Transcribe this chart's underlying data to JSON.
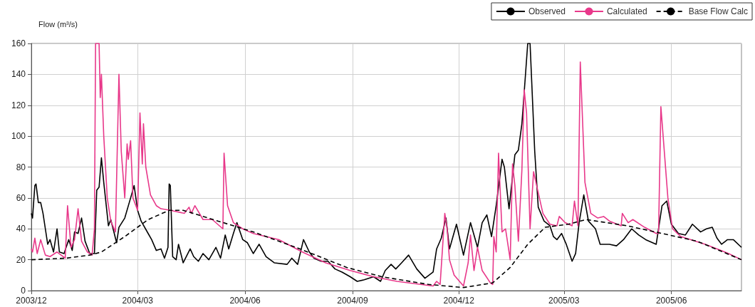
{
  "chart_data": {
    "type": "line",
    "ylabel": "Flow (m³/s)",
    "xlim": [
      "2003-12-01",
      "2005-07-31"
    ],
    "xticks": [
      {
        "value": "2003-12-01",
        "label": "2003/12"
      },
      {
        "value": "2004-03-01",
        "label": "2004/03"
      },
      {
        "value": "2004-06-01",
        "label": "2004/06"
      },
      {
        "value": "2004-09-01",
        "label": "2004/09"
      },
      {
        "value": "2004-12-01",
        "label": "2004/12"
      },
      {
        "value": "2005-03-01",
        "label": "2005/03"
      },
      {
        "value": "2005-06-01",
        "label": "2005/06"
      }
    ],
    "ylim": [
      0,
      160
    ],
    "yticks": [
      0,
      20,
      40,
      60,
      80,
      100,
      120,
      140,
      160
    ],
    "grid": true,
    "legend": "top right",
    "marker": "none",
    "series": [
      {
        "name": "Observed",
        "color": "#000000",
        "line_style": "solid",
        "x": [
          "2003-12-01",
          "2003-12-02",
          "2003-12-04",
          "2003-12-05",
          "2003-12-07",
          "2003-12-09",
          "2003-12-11",
          "2003-12-13",
          "2003-12-15",
          "2003-12-17",
          "2003-12-20",
          "2003-12-23",
          "2003-12-25",
          "2003-12-29",
          "2004-01-02",
          "2004-01-05",
          "2004-01-07",
          "2004-01-10",
          "2004-01-13",
          "2004-01-16",
          "2004-01-20",
          "2004-01-24",
          "2004-01-26",
          "2004-01-28",
          "2004-01-30",
          "2004-02-01",
          "2004-02-05",
          "2004-02-07",
          "2004-02-12",
          "2004-02-14",
          "2004-02-19",
          "2004-02-24",
          "2004-02-27",
          "2004-03-01",
          "2004-03-04",
          "2004-03-10",
          "2004-03-13",
          "2004-03-17",
          "2004-03-21",
          "2004-03-24",
          "2004-03-27",
          "2004-03-28",
          "2004-03-29",
          "2004-03-31",
          "2004-04-03",
          "2004-04-05",
          "2004-04-09",
          "2004-04-15",
          "2004-04-18",
          "2004-04-22",
          "2004-04-26",
          "2004-05-01",
          "2004-05-07",
          "2004-05-11",
          "2004-05-15",
          "2004-05-18",
          "2004-05-22",
          "2004-05-25",
          "2004-05-30",
          "2004-06-03",
          "2004-06-08",
          "2004-06-13",
          "2004-06-19",
          "2004-06-26",
          "2004-07-07",
          "2004-07-11",
          "2004-07-16",
          "2004-07-21",
          "2004-07-26",
          "2004-07-30",
          "2004-08-05",
          "2004-08-11",
          "2004-08-17",
          "2004-08-23",
          "2004-08-30",
          "2004-09-05",
          "2004-09-11",
          "2004-09-19",
          "2004-09-25",
          "2004-09-29",
          "2004-10-04",
          "2004-10-08",
          "2004-10-13",
          "2004-10-19",
          "2004-10-26",
          "2004-11-02",
          "2004-11-09",
          "2004-11-12",
          "2004-11-16",
          "2004-11-20",
          "2004-11-23",
          "2004-11-29",
          "2004-12-05",
          "2004-12-11",
          "2004-12-17",
          "2004-12-21",
          "2004-12-25",
          "2004-12-29",
          "2005-01-02",
          "2005-01-07",
          "2005-01-09",
          "2005-01-13",
          "2005-01-18",
          "2005-01-21",
          "2005-01-24",
          "2005-01-27",
          "2005-01-29",
          "2005-01-31",
          "2005-02-04",
          "2005-02-07",
          "2005-02-12",
          "2005-02-17",
          "2005-02-20",
          "2005-02-23",
          "2005-02-27",
          "2005-03-03",
          "2005-03-08",
          "2005-03-11",
          "2005-03-14",
          "2005-03-18",
          "2005-03-22",
          "2005-03-28",
          "2005-04-01",
          "2005-04-09",
          "2005-04-15",
          "2005-04-21",
          "2005-04-28",
          "2005-05-04",
          "2005-05-10",
          "2005-05-19",
          "2005-05-24",
          "2005-05-28",
          "2005-06-01",
          "2005-06-07",
          "2005-06-13",
          "2005-06-19",
          "2005-06-26",
          "2005-07-01",
          "2005-07-06",
          "2005-07-10",
          "2005-07-14",
          "2005-07-19",
          "2005-07-24",
          "2005-07-31"
        ],
        "values": [
          50,
          47,
          68,
          69,
          57,
          57,
          50,
          40,
          30,
          33,
          25,
          40,
          25,
          24,
          33,
          26,
          38,
          37,
          47,
          32,
          24,
          24,
          65,
          67,
          86,
          70,
          42,
          46,
          31,
          41,
          47,
          60,
          68,
          52,
          45,
          37,
          33,
          26,
          27,
          21,
          28,
          69,
          68,
          22,
          20,
          30,
          18,
          27,
          22,
          19,
          24,
          20,
          28,
          21,
          36,
          27,
          37,
          44,
          33,
          31,
          24,
          30,
          22,
          18,
          17,
          21,
          17,
          33,
          25,
          21,
          19,
          19,
          14,
          12,
          9,
          6,
          7,
          9,
          6,
          13,
          17,
          14,
          18,
          23,
          14,
          8,
          12,
          27,
          34,
          47,
          27,
          43,
          23,
          44,
          28,
          44,
          49,
          35,
          55,
          85,
          80,
          53,
          88,
          91,
          108,
          139,
          160,
          160,
          90,
          54,
          45,
          42,
          35,
          33,
          37,
          30,
          19,
          24,
          44,
          62,
          45,
          40,
          30,
          30,
          29,
          33,
          40,
          36,
          33,
          30,
          55,
          58,
          43,
          37,
          36,
          43,
          38,
          40,
          41,
          34,
          30,
          33,
          33,
          28
        ]
      },
      {
        "name": "Calculated",
        "color": "#e8388a",
        "line_style": "solid",
        "x": [
          "2003-12-01",
          "2003-12-02",
          "2003-12-04",
          "2003-12-06",
          "2003-12-09",
          "2003-12-13",
          "2003-12-17",
          "2003-12-23",
          "2003-12-30",
          "2004-01-01",
          "2004-01-04",
          "2004-01-07",
          "2004-01-10",
          "2004-01-13",
          "2004-01-18",
          "2004-01-22",
          "2004-01-24",
          "2004-01-25",
          "2004-01-28",
          "2004-01-29",
          "2004-01-30",
          "2004-02-01",
          "2004-02-04",
          "2004-02-07",
          "2004-02-11",
          "2004-02-14",
          "2004-02-16",
          "2004-02-19",
          "2004-02-21",
          "2004-02-22",
          "2004-02-24",
          "2004-02-26",
          "2004-03-01",
          "2004-03-03",
          "2004-03-05",
          "2004-03-06",
          "2004-03-08",
          "2004-03-12",
          "2004-03-17",
          "2004-03-21",
          "2004-03-29",
          "2004-04-10",
          "2004-04-14",
          "2004-04-16",
          "2004-04-19",
          "2004-04-26",
          "2004-05-04",
          "2004-05-13",
          "2004-05-14",
          "2004-05-17",
          "2004-05-22",
          "2004-05-30",
          "2004-06-08",
          "2004-06-30",
          "2004-07-20",
          "2004-08-09",
          "2004-08-30",
          "2004-09-19",
          "2004-10-09",
          "2004-11-09",
          "2004-11-12",
          "2004-11-15",
          "2004-11-19",
          "2004-11-21",
          "2004-11-23",
          "2004-11-27",
          "2004-12-05",
          "2004-12-09",
          "2004-12-11",
          "2004-12-14",
          "2004-12-17",
          "2004-12-21",
          "2004-12-28",
          "2004-12-30",
          "2004-12-31",
          "2005-01-02",
          "2005-01-04",
          "2005-01-07",
          "2005-01-10",
          "2005-01-14",
          "2005-01-16",
          "2005-01-18",
          "2005-01-21",
          "2005-01-24",
          "2005-01-26",
          "2005-01-28",
          "2005-01-31",
          "2005-02-03",
          "2005-02-08",
          "2005-02-11",
          "2005-02-17",
          "2005-02-23",
          "2005-02-25",
          "2005-03-02",
          "2005-03-08",
          "2005-03-10",
          "2005-03-13",
          "2005-03-15",
          "2005-03-19",
          "2005-03-24",
          "2005-03-30",
          "2005-04-04",
          "2005-04-09",
          "2005-04-19",
          "2005-04-20",
          "2005-04-25",
          "2005-04-29",
          "2005-05-09",
          "2005-05-19",
          "2005-05-21",
          "2005-05-23",
          "2005-05-29",
          "2005-06-02",
          "2005-06-09",
          "2005-06-30",
          "2005-07-20",
          "2005-07-31"
        ],
        "values": [
          27,
          25,
          34,
          24,
          33,
          23,
          22,
          25,
          21,
          55,
          28,
          33,
          53,
          32,
          25,
          23,
          40,
          160,
          160,
          125,
          140,
          100,
          60,
          45,
          38,
          140,
          90,
          60,
          95,
          85,
          97,
          60,
          52,
          115,
          82,
          108,
          80,
          62,
          55,
          53,
          52,
          50,
          54,
          50,
          55,
          46,
          46,
          40,
          89,
          55,
          44,
          40,
          37,
          33,
          25,
          18,
          13,
          9,
          6,
          3,
          6,
          4,
          50,
          40,
          20,
          10,
          3,
          18,
          36,
          13,
          28,
          13,
          5,
          4,
          35,
          25,
          89,
          38,
          40,
          20,
          82,
          68,
          32,
          78,
          130,
          115,
          40,
          77,
          60,
          50,
          43,
          42,
          48,
          44,
          42,
          58,
          42,
          148,
          70,
          50,
          47,
          48,
          45,
          42,
          50,
          44,
          46,
          41,
          37,
          37,
          119,
          60,
          40,
          35,
          30,
          24,
          20
        ]
      },
      {
        "name": "Base Flow Calc",
        "color": "#000000",
        "line_style": "dashed",
        "x": [
          "2003-12-01",
          "2003-12-31",
          "2004-01-20",
          "2004-01-30",
          "2004-02-19",
          "2004-03-10",
          "2004-03-28",
          "2004-04-09",
          "2004-05-09",
          "2004-06-08",
          "2004-07-18",
          "2004-08-27",
          "2004-09-26",
          "2004-11-05",
          "2004-12-05",
          "2004-12-30",
          "2005-01-14",
          "2005-01-29",
          "2005-02-13",
          "2005-03-05",
          "2005-03-20",
          "2005-04-24",
          "2005-05-24",
          "2005-06-23",
          "2005-07-31"
        ],
        "values": [
          20,
          21,
          23,
          25,
          35,
          46,
          52,
          52,
          45,
          38,
          27,
          15,
          9,
          4,
          2,
          5,
          15,
          30,
          41,
          43,
          46,
          42,
          37,
          32,
          20
        ]
      }
    ]
  }
}
